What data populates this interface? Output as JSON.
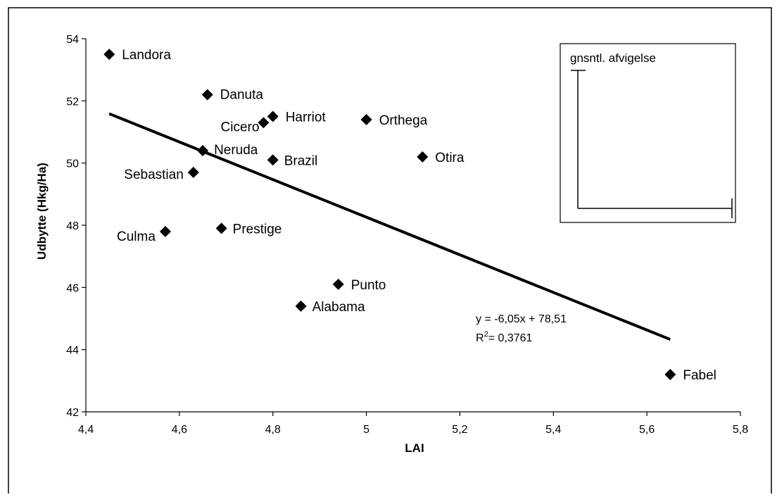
{
  "chart_data": {
    "type": "scatter",
    "title": "",
    "xlabel": "LAI",
    "ylabel": "Udbytte (Hkg/Ha)",
    "xlim": [
      4.4,
      5.8
    ],
    "ylim": [
      42,
      54
    ],
    "x_ticks": [
      4.4,
      4.6,
      4.8,
      5,
      5.2,
      5.4,
      5.6,
      5.8
    ],
    "x_tick_labels": [
      "4,4",
      "4,6",
      "4,8",
      "5",
      "5,2",
      "5,4",
      "5,6",
      "5,8"
    ],
    "y_ticks": [
      42,
      44,
      46,
      48,
      50,
      52,
      54
    ],
    "y_tick_labels": [
      "42",
      "44",
      "46",
      "48",
      "50",
      "52",
      "54"
    ],
    "grid": false,
    "legend_position": "top-right",
    "legend_label": "gnsntl. afvigelse",
    "points": [
      {
        "name": "Landora",
        "x": 4.45,
        "y": 53.5
      },
      {
        "name": "Danuta",
        "x": 4.66,
        "y": 52.2
      },
      {
        "name": "Cicero",
        "x": 4.78,
        "y": 51.3
      },
      {
        "name": "Harriot",
        "x": 4.8,
        "y": 51.5
      },
      {
        "name": "Orthega",
        "x": 5.0,
        "y": 51.4
      },
      {
        "name": "Neruda",
        "x": 4.65,
        "y": 50.4
      },
      {
        "name": "Brazil",
        "x": 4.8,
        "y": 50.1
      },
      {
        "name": "Otira",
        "x": 5.12,
        "y": 50.2
      },
      {
        "name": "Sebastian",
        "x": 4.63,
        "y": 49.7
      },
      {
        "name": "Culma",
        "x": 4.57,
        "y": 47.8
      },
      {
        "name": "Prestige",
        "x": 4.69,
        "y": 47.9
      },
      {
        "name": "Punto",
        "x": 4.94,
        "y": 46.1
      },
      {
        "name": "Alabama",
        "x": 4.86,
        "y": 45.4
      },
      {
        "name": "Fabel",
        "x": 5.65,
        "y": 43.2
      }
    ],
    "trendline": {
      "slope": -6.05,
      "intercept": 78.51,
      "x_range": [
        4.45,
        5.65
      ],
      "equation": "y = -6,05x + 78,51",
      "r2_prefix": "R",
      "r2_sup": "2",
      "r2_value": "= 0,3761"
    }
  },
  "colors": {
    "marker": "#000000",
    "line": "#000000",
    "background": "#ffffff"
  }
}
